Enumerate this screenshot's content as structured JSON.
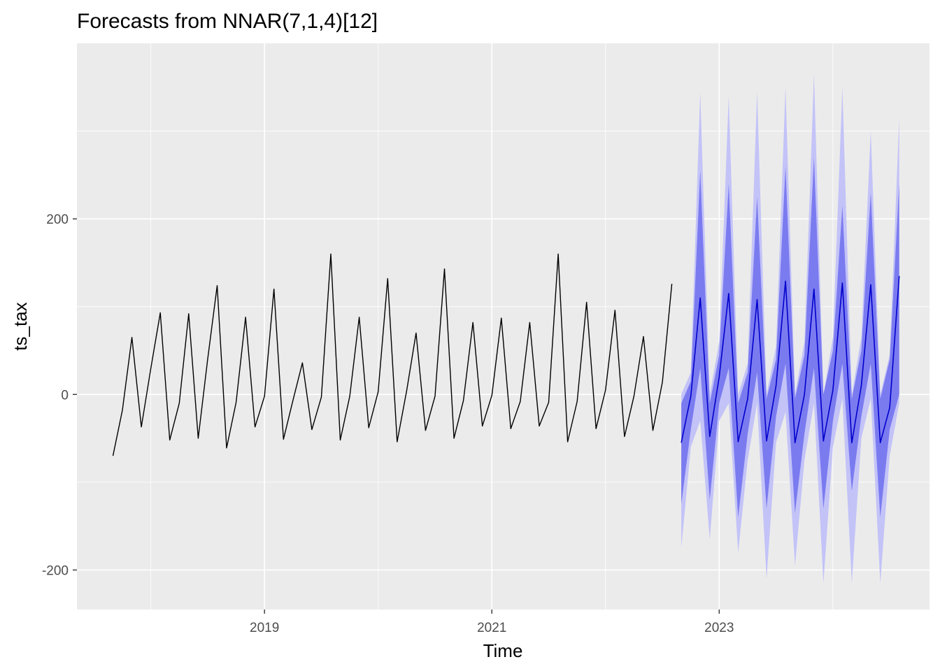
{
  "chart_data": {
    "type": "line",
    "title": "Forecasts from NNAR(7,1,4)[12]",
    "xlabel": "Time",
    "ylabel": "ts_tax",
    "xlim": [
      2017.35,
      2024.85
    ],
    "ylim": [
      -245,
      400
    ],
    "x_ticks": [
      {
        "value": 2019,
        "label": "2019"
      },
      {
        "value": 2021,
        "label": "2021"
      },
      {
        "value": 2023,
        "label": "2023"
      }
    ],
    "y_ticks": [
      {
        "value": -200,
        "label": "-200"
      },
      {
        "value": 0,
        "label": "0"
      },
      {
        "value": 200,
        "label": "200"
      }
    ],
    "x_minor_ticks": [
      2018,
      2020,
      2022,
      2024
    ],
    "y_minor_ticks": [
      -100,
      100,
      300
    ],
    "grid": true,
    "colors": {
      "history": "#000000",
      "forecast": "#0000cc",
      "pi80": "#7b7bf0",
      "pi95": "#c3c3f8",
      "panel": "#ebebeb",
      "grid": "#ffffff"
    },
    "series": [
      {
        "role": "observed",
        "x_start": 2017.6667,
        "frequency": 12,
        "values": [
          -70,
          -18,
          65,
          -37,
          30,
          93,
          -52,
          -10,
          92,
          -50,
          40,
          124,
          -61,
          -9,
          88,
          -37,
          -2,
          120,
          -51,
          -7,
          36,
          -40,
          -3,
          160,
          -52,
          -2,
          88,
          -38,
          3,
          132,
          -54,
          4,
          70,
          -41,
          -2,
          143,
          -50,
          -7,
          82,
          -36,
          -1,
          87,
          -39,
          -8,
          82,
          -36,
          -9,
          160,
          -54,
          -8,
          105,
          -39,
          5,
          96,
          -48,
          -2,
          66,
          -41,
          14,
          126
        ]
      },
      {
        "role": "forecast",
        "x_start": 2022.6667,
        "frequency": 12,
        "values": [
          -55,
          -2,
          110,
          -48,
          20,
          115,
          -54,
          -5,
          108,
          -53,
          10,
          129,
          -55,
          0,
          120,
          -53,
          5,
          127,
          -55,
          10,
          125,
          -55,
          -15,
          135
        ],
        "pi80_lower": [
          -125,
          -40,
          30,
          -120,
          -10,
          30,
          -140,
          -45,
          25,
          -130,
          -25,
          35,
          -135,
          -45,
          30,
          -130,
          -30,
          35,
          -110,
          -25,
          35,
          -140,
          -40,
          0
        ],
        "pi80_upper": [
          -10,
          15,
          255,
          -10,
          45,
          240,
          -10,
          25,
          225,
          -5,
          40,
          260,
          -5,
          45,
          270,
          0,
          50,
          215,
          -5,
          50,
          230,
          -5,
          40,
          240
        ],
        "pi95_lower": [
          -175,
          -60,
          -30,
          -165,
          -30,
          -10,
          -180,
          -75,
          -10,
          -210,
          -55,
          -20,
          -195,
          -75,
          -10,
          -215,
          -60,
          -5,
          -215,
          -50,
          -5,
          -215,
          -70,
          -10
        ],
        "pi95_upper": [
          0,
          25,
          345,
          0,
          60,
          340,
          0,
          35,
          345,
          0,
          55,
          350,
          0,
          60,
          365,
          0,
          65,
          350,
          0,
          65,
          300,
          0,
          45,
          315
        ]
      }
    ]
  }
}
